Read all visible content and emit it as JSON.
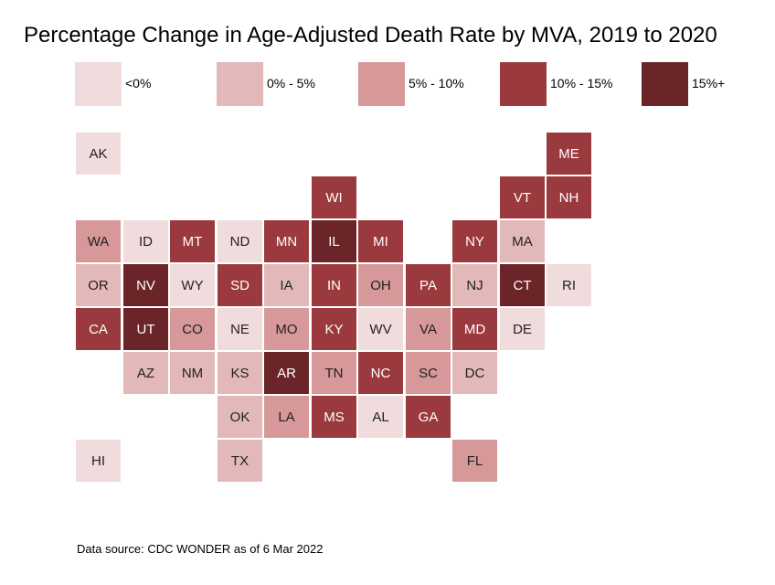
{
  "chart_data": {
    "type": "heatmap",
    "subtype": "tile-grid-map",
    "title": "Percentage Change in Age-Adjusted Death Rate by MVA, 2019 to 2020",
    "legend_position": "top",
    "bins": [
      {
        "label": "<0%",
        "color": "#f0dcdc"
      },
      {
        "label": "0% - 5%",
        "color": "#e3b8b8"
      },
      {
        "label": "5% - 10%",
        "color": "#d69898"
      },
      {
        "label": "10% - 15%",
        "color": "#9b3a3e"
      },
      {
        "label": "15%+",
        "color": "#6b2528"
      }
    ],
    "states": [
      {
        "abbr": "AK",
        "bin": 0
      },
      {
        "abbr": "ME",
        "bin": 3
      },
      {
        "abbr": "WI",
        "bin": 3
      },
      {
        "abbr": "VT",
        "bin": 3
      },
      {
        "abbr": "NH",
        "bin": 3
      },
      {
        "abbr": "WA",
        "bin": 2
      },
      {
        "abbr": "ID",
        "bin": 0
      },
      {
        "abbr": "MT",
        "bin": 3
      },
      {
        "abbr": "ND",
        "bin": 0
      },
      {
        "abbr": "MN",
        "bin": 3
      },
      {
        "abbr": "IL",
        "bin": 4
      },
      {
        "abbr": "MI",
        "bin": 3
      },
      {
        "abbr": "NY",
        "bin": 3
      },
      {
        "abbr": "MA",
        "bin": 1
      },
      {
        "abbr": "OR",
        "bin": 1
      },
      {
        "abbr": "NV",
        "bin": 4
      },
      {
        "abbr": "WY",
        "bin": 0
      },
      {
        "abbr": "SD",
        "bin": 3
      },
      {
        "abbr": "IA",
        "bin": 1
      },
      {
        "abbr": "IN",
        "bin": 3
      },
      {
        "abbr": "OH",
        "bin": 2
      },
      {
        "abbr": "PA",
        "bin": 3
      },
      {
        "abbr": "NJ",
        "bin": 1
      },
      {
        "abbr": "CT",
        "bin": 4
      },
      {
        "abbr": "RI",
        "bin": 0
      },
      {
        "abbr": "CA",
        "bin": 3
      },
      {
        "abbr": "UT",
        "bin": 4
      },
      {
        "abbr": "CO",
        "bin": 2
      },
      {
        "abbr": "NE",
        "bin": 0
      },
      {
        "abbr": "MO",
        "bin": 2
      },
      {
        "abbr": "KY",
        "bin": 3
      },
      {
        "abbr": "WV",
        "bin": 0
      },
      {
        "abbr": "VA",
        "bin": 2
      },
      {
        "abbr": "MD",
        "bin": 3
      },
      {
        "abbr": "DE",
        "bin": 0
      },
      {
        "abbr": "AZ",
        "bin": 1
      },
      {
        "abbr": "NM",
        "bin": 1
      },
      {
        "abbr": "KS",
        "bin": 1
      },
      {
        "abbr": "AR",
        "bin": 4
      },
      {
        "abbr": "TN",
        "bin": 2
      },
      {
        "abbr": "NC",
        "bin": 3
      },
      {
        "abbr": "SC",
        "bin": 2
      },
      {
        "abbr": "DC",
        "bin": 1
      },
      {
        "abbr": "OK",
        "bin": 1
      },
      {
        "abbr": "LA",
        "bin": 2
      },
      {
        "abbr": "MS",
        "bin": 3
      },
      {
        "abbr": "AL",
        "bin": 0
      },
      {
        "abbr": "GA",
        "bin": 3
      },
      {
        "abbr": "HI",
        "bin": 0
      },
      {
        "abbr": "TX",
        "bin": 1
      },
      {
        "abbr": "FL",
        "bin": 2
      }
    ]
  },
  "footer": {
    "source": "Data source: CDC WONDER as of 6 Mar 2022"
  }
}
